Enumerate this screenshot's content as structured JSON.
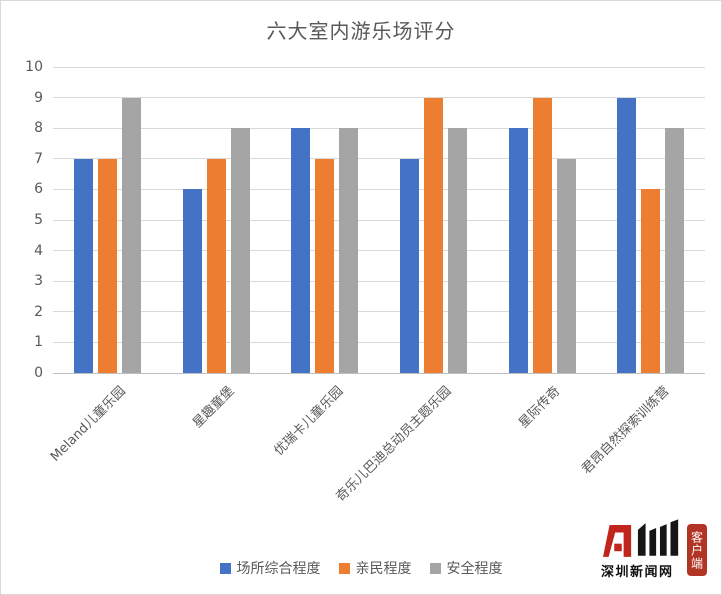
{
  "chart_data": {
    "type": "bar",
    "title": "六大室内游乐场评分",
    "categories": [
      "Meland儿童乐园",
      "星趣童堡",
      "优瑞卡儿童乐园",
      "奇乐儿巴迪总动员主题乐园",
      "星际传奇",
      "君昂自然探索训练营"
    ],
    "series": [
      {
        "name": "场所综合程度",
        "color": "#4472C4",
        "values": [
          7,
          6,
          8,
          7,
          8,
          9
        ]
      },
      {
        "name": "亲民程度",
        "color": "#ED7D31",
        "values": [
          7,
          7,
          7,
          9,
          9,
          6
        ]
      },
      {
        "name": "安全程度",
        "color": "#A5A5A5",
        "values": [
          9,
          8,
          8,
          8,
          7,
          8
        ]
      }
    ],
    "ylim": [
      0,
      10
    ],
    "ytick_step": 1,
    "grid": true,
    "legend_position": "bottom",
    "xlabel": "",
    "ylabel": ""
  },
  "watermark": {
    "brand_text": "深圳新闻网",
    "stamp_text": "客户端",
    "brand_red": "#C2251C",
    "stamp_red": "#B23424"
  },
  "colors": {
    "title_text": "#595959",
    "axis_text": "#595959",
    "gridline": "#D9D9D9",
    "axis_line": "#BFBFBF",
    "background": "#FFFFFF"
  }
}
